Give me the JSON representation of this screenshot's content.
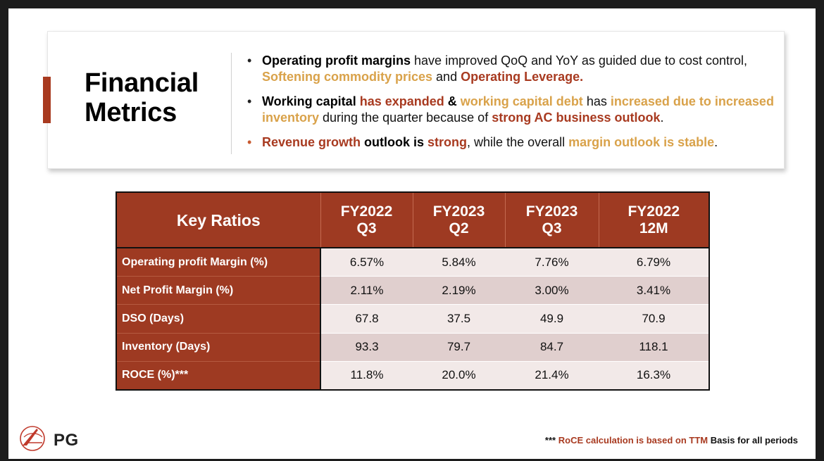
{
  "header": {
    "title_line1": "Financial",
    "title_line2": "Metrics",
    "bullets": [
      {
        "segments": [
          {
            "text": "Operating profit margins",
            "style": "b"
          },
          {
            "text": " have improved QoQ and YoY as guided due to cost control, ",
            "style": "plain"
          },
          {
            "text": "Softening commodity prices",
            "style": "gold"
          },
          {
            "text": " and ",
            "style": "plain"
          },
          {
            "text": "Operating Leverage.",
            "style": "red"
          }
        ]
      },
      {
        "segments": [
          {
            "text": "Working capital",
            "style": "b"
          },
          {
            "text": " ",
            "style": "plain"
          },
          {
            "text": "has expanded",
            "style": "red"
          },
          {
            "text": " & ",
            "style": "b"
          },
          {
            "text": "working capital debt",
            "style": "gold"
          },
          {
            "text": " has ",
            "style": "plain"
          },
          {
            "text": "increased due to increased inventory",
            "style": "gold"
          },
          {
            "text": " during the quarter because of ",
            "style": "plain"
          },
          {
            "text": "strong AC business outlook",
            "style": "red"
          },
          {
            "text": ".",
            "style": "plain"
          }
        ]
      },
      {
        "segments": [
          {
            "text": "Revenue growth",
            "style": "red"
          },
          {
            "text": " outlook is ",
            "style": "b"
          },
          {
            "text": "strong",
            "style": "red"
          },
          {
            "text": ", while the overall ",
            "style": "plain"
          },
          {
            "text": "margin outlook is stable",
            "style": "gold"
          },
          {
            "text": ".",
            "style": "plain"
          }
        ]
      }
    ]
  },
  "table": {
    "key_header": "Key Ratios",
    "columns": [
      {
        "line1": "FY2022",
        "line2": "Q3"
      },
      {
        "line1": "FY2023",
        "line2": "Q2"
      },
      {
        "line1": "FY2023",
        "line2": "Q3"
      },
      {
        "line1": "FY2022",
        "line2": "12M"
      }
    ],
    "rows": [
      {
        "label": "Operating profit Margin (%)",
        "values": [
          "6.57%",
          "5.84%",
          "7.76%",
          "6.79%"
        ]
      },
      {
        "label": "Net Profit Margin (%)",
        "values": [
          "2.11%",
          "2.19%",
          "3.00%",
          "3.41%"
        ]
      },
      {
        "label": "DSO (Days)",
        "values": [
          "67.8",
          "37.5",
          "49.9",
          "70.9"
        ]
      },
      {
        "label": "Inventory (Days)",
        "values": [
          "93.3",
          "79.7",
          "84.7",
          "118.1"
        ]
      },
      {
        "label": "ROCE (%)***",
        "values": [
          "11.8%",
          "20.0%",
          "21.4%",
          "16.3%"
        ]
      }
    ]
  },
  "footer": {
    "logo_text": "PG",
    "footnote_stars": "***",
    "footnote_red": "RoCE calculation is based on TTM",
    "footnote_rest": "Basis for all periods"
  },
  "colors": {
    "accent_red": "#a83a20",
    "accent_gold": "#d9a24a",
    "table_header_bg": "#9e3a22"
  }
}
